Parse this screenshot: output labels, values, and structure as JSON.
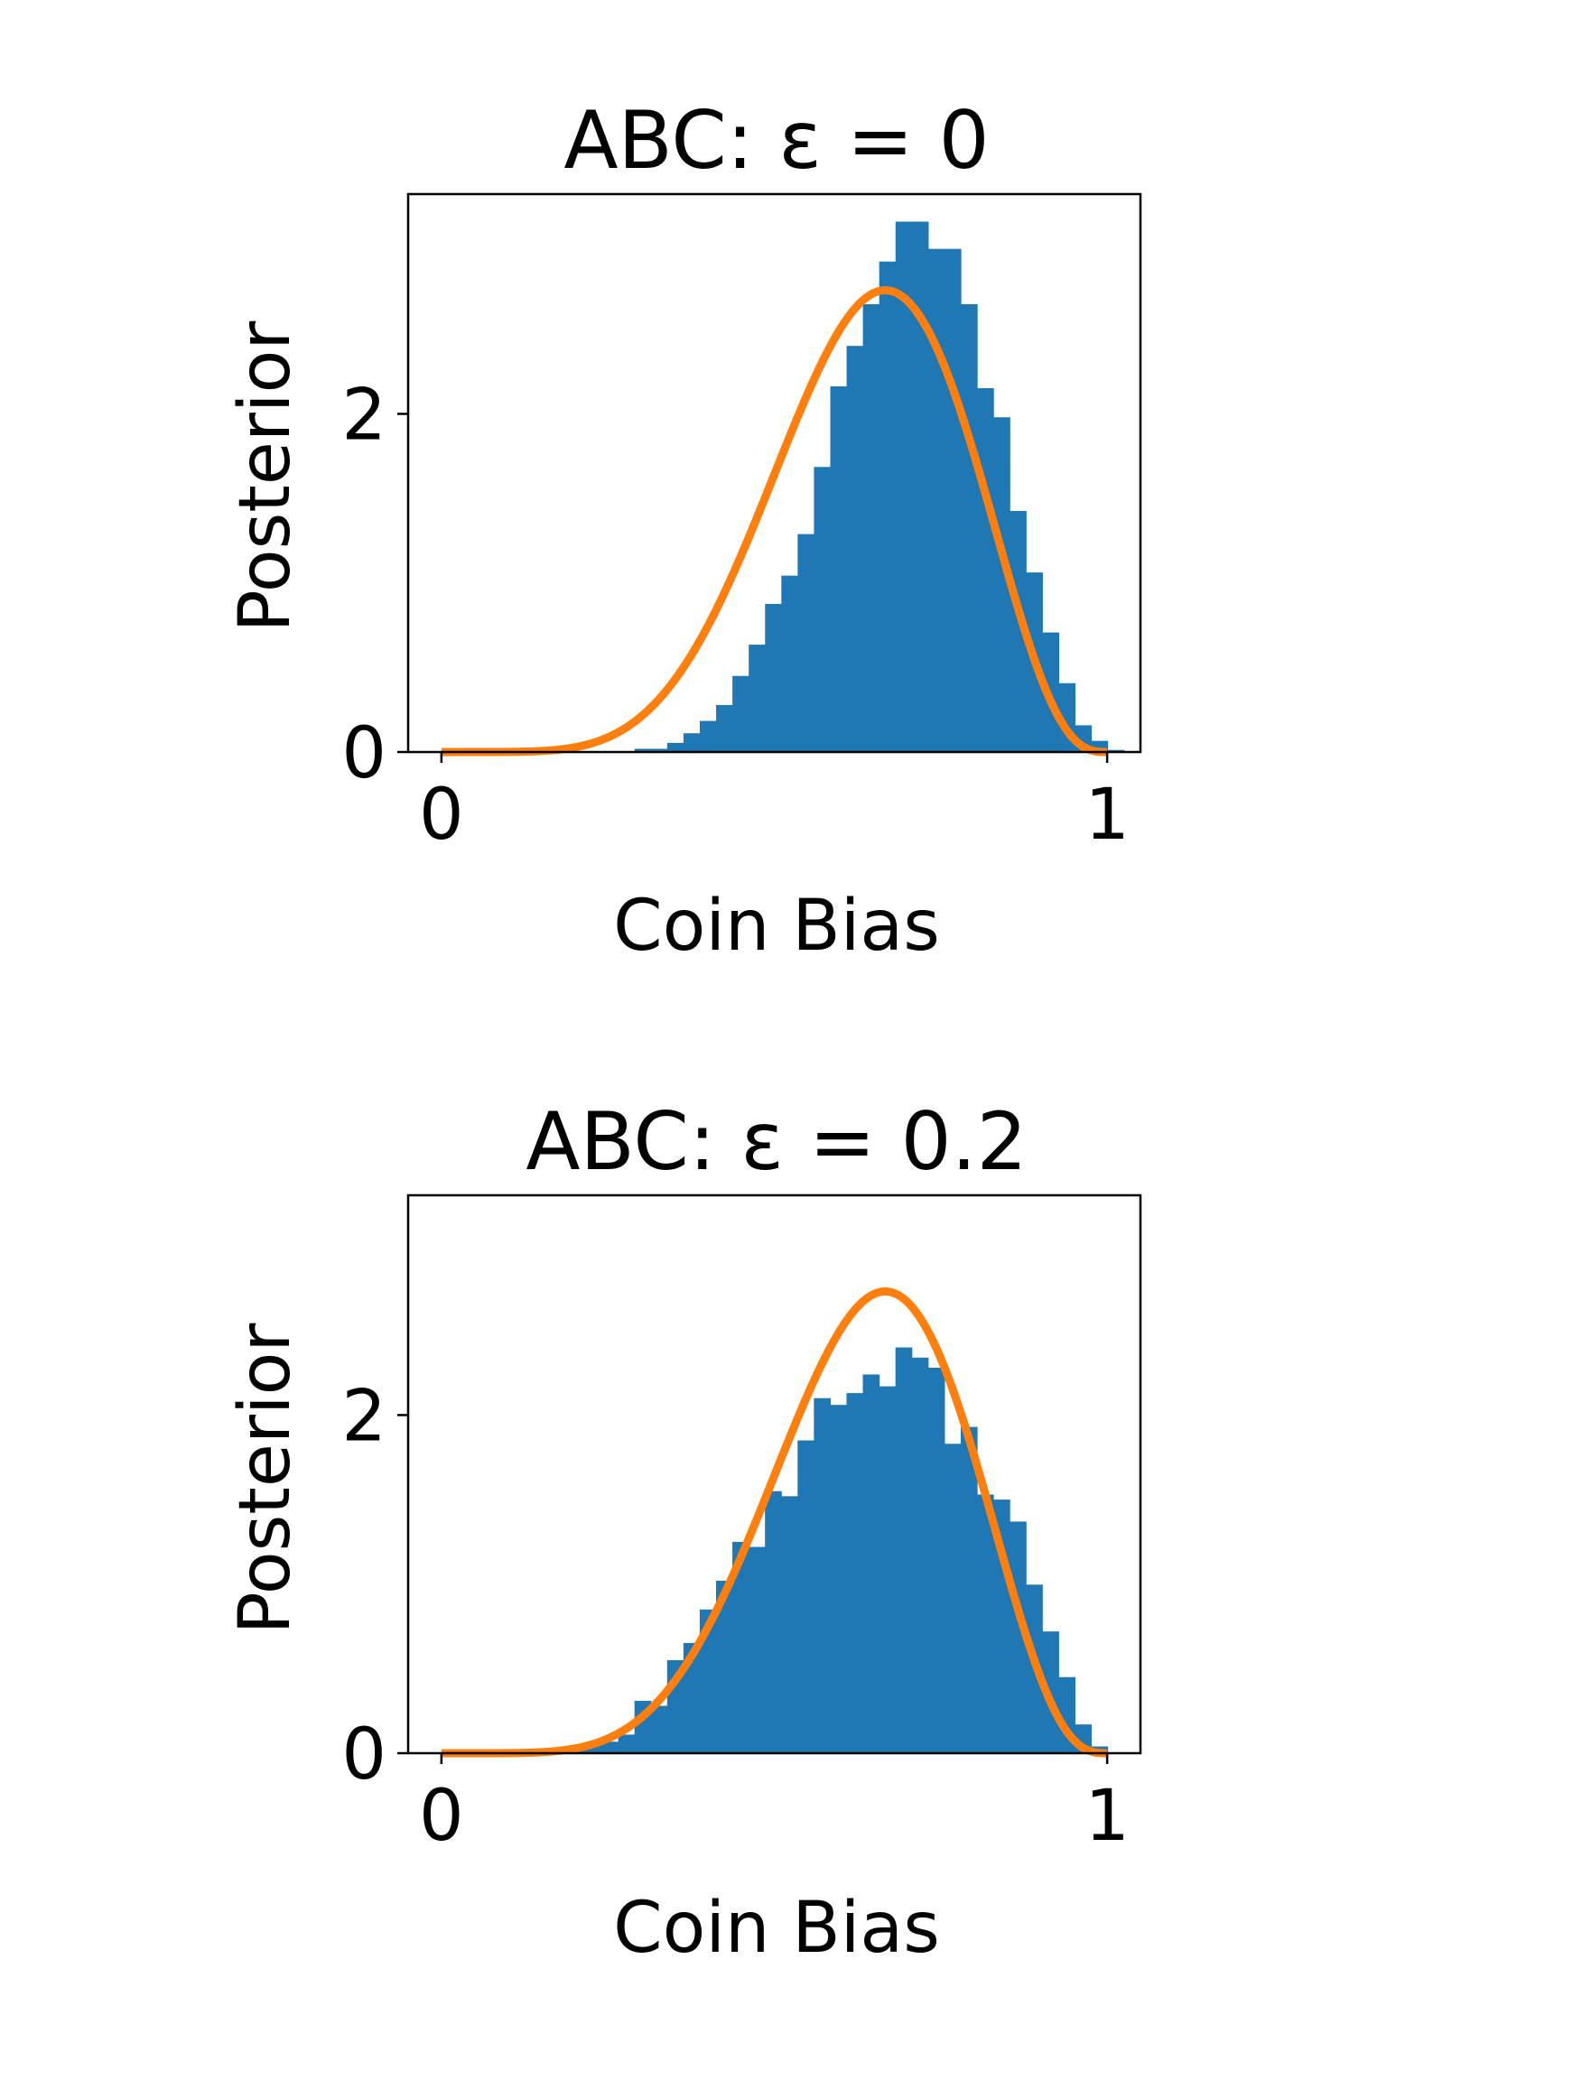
{
  "chart_data": [
    {
      "type": "bar",
      "title": "ABC: ε = 0",
      "xlabel": "Coin Bias",
      "ylabel": "Posterior",
      "xlim": [
        -0.05,
        1.05
      ],
      "ylim": [
        0,
        3.3
      ],
      "xticks": [
        0,
        1
      ],
      "xtick_labels": [
        "0",
        "1"
      ],
      "yticks": [
        0,
        2
      ],
      "ytick_labels": [
        "0",
        "2"
      ],
      "grid": false,
      "legend": "none",
      "histogram": {
        "bin_start": 0.2656,
        "bin_width": 0.0245,
        "values": [
          0.003,
          0.019,
          0.019,
          0.054,
          0.111,
          0.184,
          0.278,
          0.45,
          0.635,
          0.876,
          1.043,
          1.289,
          1.686,
          2.163,
          2.402,
          2.649,
          2.901,
          3.137,
          3.137,
          2.976,
          2.976,
          2.649,
          2.152,
          1.98,
          1.426,
          1.062,
          0.707,
          0.407,
          0.158,
          0.066,
          0.012
        ],
        "color": "#1f77b4"
      },
      "curve": {
        "formula": "beta(a=7, b=4) density",
        "color": "#ff7f0e",
        "x_range": [
          0,
          1
        ]
      }
    },
    {
      "type": "bar",
      "title": "ABC: ε = 0.2",
      "xlabel": "Coin Bias",
      "ylabel": "Posterior",
      "xlim": [
        -0.05,
        1.05
      ],
      "ylim": [
        0,
        3.3
      ],
      "xticks": [
        0,
        1
      ],
      "xtick_labels": [
        "0",
        "1"
      ],
      "yticks": [
        0,
        2
      ],
      "ytick_labels": [
        "0",
        "2"
      ],
      "grid": false,
      "legend": "none",
      "histogram": {
        "bin_start": 0.1675,
        "bin_width": 0.0245,
        "values": [
          0.01,
          0.02,
          0.055,
          0.068,
          0.11,
          0.31,
          0.28,
          0.55,
          0.652,
          0.85,
          1.02,
          1.25,
          1.22,
          1.55,
          1.52,
          1.85,
          2.1,
          2.06,
          2.13,
          2.24,
          2.17,
          2.4,
          2.34,
          2.28,
          1.83,
          1.93,
          1.53,
          1.5,
          1.37,
          0.997,
          0.72,
          0.45,
          0.17,
          0.04,
          0.005
        ],
        "color": "#1f77b4"
      },
      "curve": {
        "formula": "beta(a=7, b=4) density",
        "color": "#ff7f0e",
        "x_range": [
          0,
          1
        ]
      }
    }
  ]
}
